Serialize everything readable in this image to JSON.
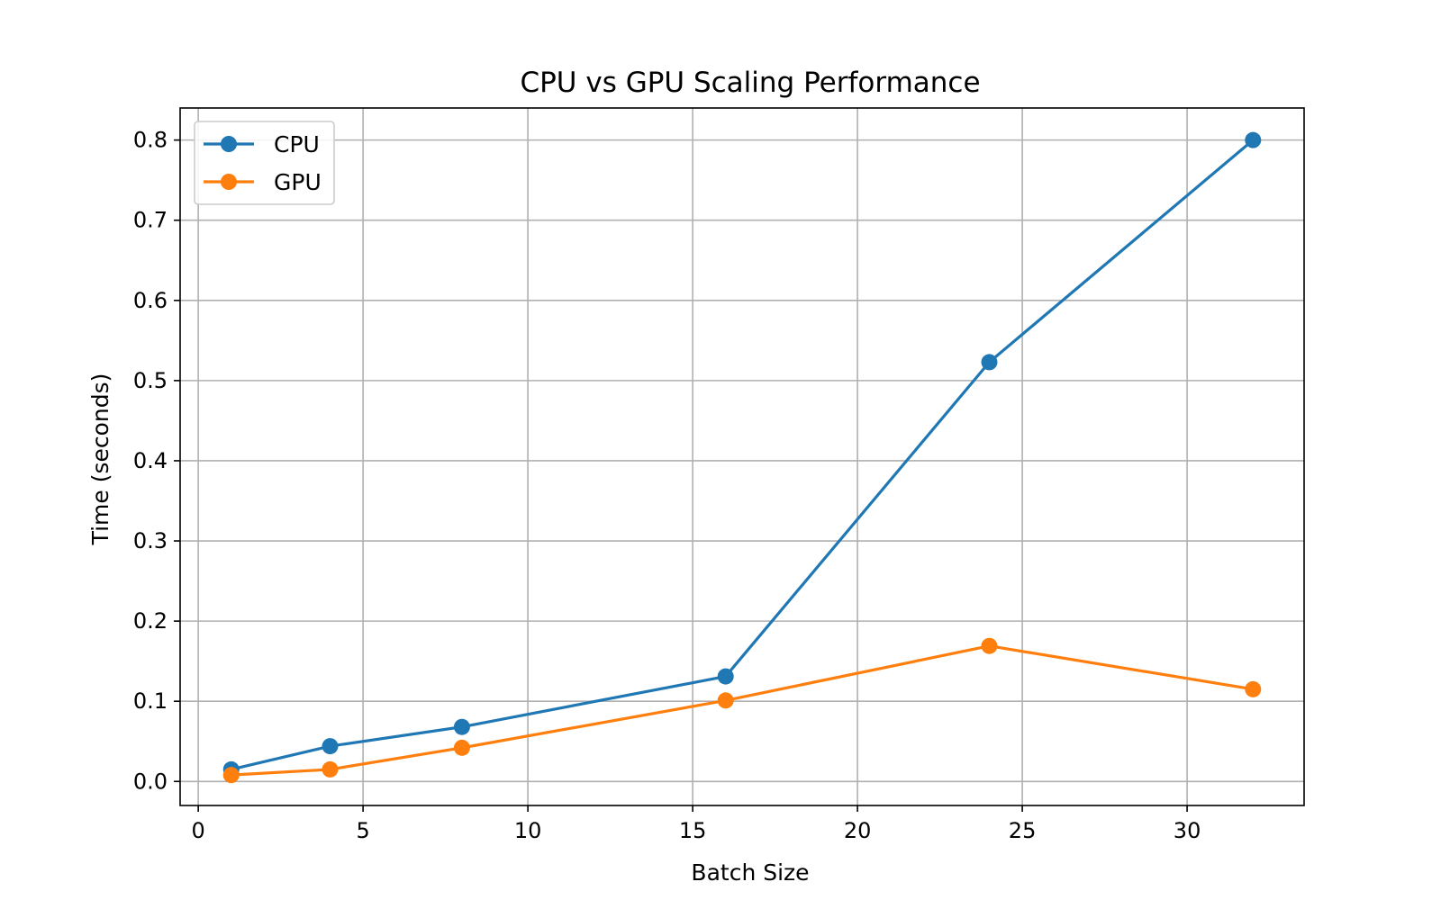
{
  "chart_data": {
    "type": "line",
    "title": "CPU vs GPU Scaling Performance",
    "xlabel": "Batch Size",
    "ylabel": "Time (seconds)",
    "xlim": [
      -0.55,
      33.55
    ],
    "ylim": [
      -0.03,
      0.84
    ],
    "xticks": [
      0,
      5,
      10,
      15,
      20,
      25,
      30
    ],
    "yticks": [
      0.0,
      0.1,
      0.2,
      0.3,
      0.4,
      0.5,
      0.6,
      0.7,
      0.8
    ],
    "xtick_labels": [
      "0",
      "5",
      "10",
      "15",
      "20",
      "25",
      "30"
    ],
    "ytick_labels": [
      "0.0",
      "0.1",
      "0.2",
      "0.3",
      "0.4",
      "0.5",
      "0.6",
      "0.7",
      "0.8"
    ],
    "grid": true,
    "legend_position": "top-left",
    "series": [
      {
        "name": "CPU",
        "color": "#1f77b4",
        "x": [
          1,
          4,
          8,
          16,
          24,
          32
        ],
        "y": [
          0.015,
          0.044,
          0.068,
          0.131,
          0.523,
          0.8
        ]
      },
      {
        "name": "GPU",
        "color": "#ff7f0e",
        "x": [
          1,
          4,
          8,
          16,
          24,
          32
        ],
        "y": [
          0.008,
          0.015,
          0.042,
          0.101,
          0.169,
          0.115
        ]
      }
    ]
  }
}
